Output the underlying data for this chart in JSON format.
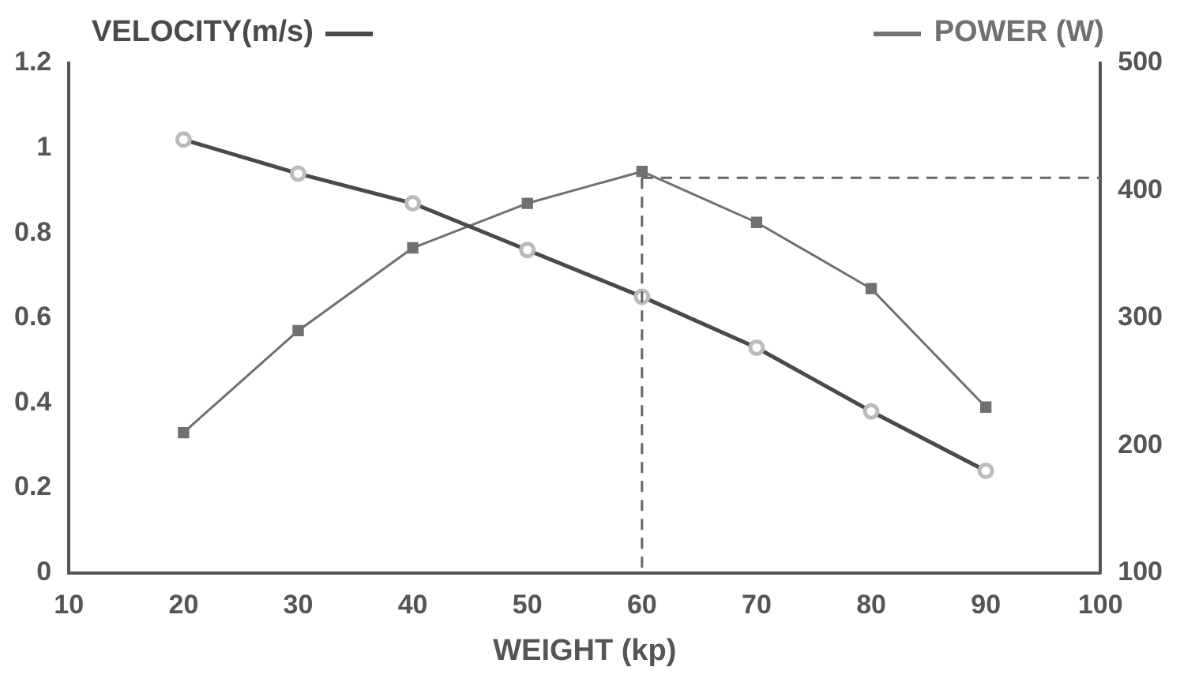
{
  "chart_data": {
    "type": "line",
    "xlabel": "WEIGHT (kp)",
    "x": [
      20,
      30,
      40,
      50,
      60,
      70,
      80,
      90
    ],
    "xlim": [
      10,
      100
    ],
    "xticks": [
      10,
      20,
      30,
      40,
      50,
      60,
      70,
      80,
      90,
      100
    ],
    "ylim": [
      0,
      1.2
    ],
    "yticks": [
      0,
      0.2,
      0.4,
      0.6,
      0.8,
      1,
      1.2
    ],
    "y2lim": [
      100,
      500
    ],
    "y2ticks": [
      100,
      200,
      300,
      400,
      500
    ],
    "legend": "top",
    "grid": false,
    "series": [
      {
        "name": "VELOCITY(m/s)",
        "color": "#4a4a4a",
        "marker": "circle",
        "values": [
          1.02,
          0.94,
          0.87,
          0.76,
          0.65,
          0.53,
          0.38,
          0.24
        ]
      },
      {
        "name": "POWER (W)",
        "color": "#707070",
        "marker": "square",
        "axis": "y2",
        "values": [
          210,
          290,
          355,
          390,
          415,
          375,
          323,
          230
        ]
      }
    ],
    "ref_lines": [
      {
        "axis": "x",
        "value": 60,
        "color": "#666666",
        "line_style": "dashed"
      },
      {
        "axis": "y2",
        "value": 410,
        "color": "#666666",
        "line_style": "dashed"
      }
    ]
  }
}
